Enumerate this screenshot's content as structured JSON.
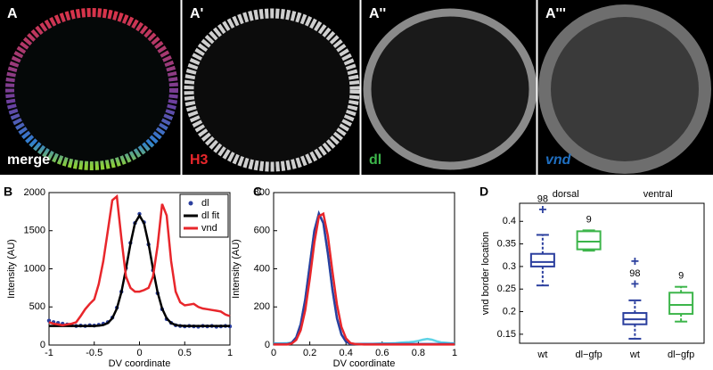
{
  "panels": [
    {
      "label": "A",
      "caption": "merge",
      "caption_color": "#ffffff"
    },
    {
      "label": "A'",
      "caption": "H3",
      "caption_color": "#e8262b"
    },
    {
      "label": "A''",
      "caption": "dl",
      "caption_color": "#3cb54a"
    },
    {
      "label": "A'''",
      "caption": "vnd",
      "caption_color": "#1f6fc1"
    }
  ],
  "chart_data": [
    {
      "type": "line",
      "panel": "B",
      "xlabel": "DV coordinate",
      "ylabel": "Intensity (AU)",
      "xlim": [
        -1,
        1
      ],
      "xticks": [
        -1,
        -0.5,
        0,
        0.5,
        1
      ],
      "ylim": [
        0,
        2000
      ],
      "yticks": [
        0,
        500,
        1000,
        1500,
        2000
      ],
      "legend": "upper right",
      "x": [
        -1,
        -0.95,
        -0.9,
        -0.85,
        -0.8,
        -0.75,
        -0.7,
        -0.65,
        -0.6,
        -0.55,
        -0.5,
        -0.45,
        -0.4,
        -0.35,
        -0.3,
        -0.25,
        -0.2,
        -0.15,
        -0.1,
        -0.05,
        0,
        0.05,
        0.1,
        0.15,
        0.2,
        0.25,
        0.3,
        0.35,
        0.4,
        0.45,
        0.5,
        0.55,
        0.6,
        0.65,
        0.7,
        0.75,
        0.8,
        0.85,
        0.9,
        0.95,
        1
      ],
      "series": [
        {
          "name": "dl",
          "color": "#2b3f9e",
          "style": "points",
          "values": [
            320,
            300,
            290,
            280,
            270,
            260,
            250,
            255,
            250,
            260,
            255,
            265,
            280,
            300,
            360,
            490,
            700,
            1010,
            1340,
            1600,
            1720,
            1610,
            1320,
            980,
            680,
            470,
            340,
            290,
            260,
            250,
            245,
            250,
            245,
            240,
            250,
            245,
            250,
            240,
            245,
            250,
            245
          ]
        },
        {
          "name": "dl fit",
          "color": "#000000",
          "style": "line",
          "values": [
            250,
            250,
            250,
            250,
            250,
            250,
            250,
            250,
            250,
            250,
            250,
            254,
            263,
            289,
            351,
            478,
            694,
            995,
            1329,
            1597,
            1700,
            1597,
            1329,
            995,
            694,
            478,
            351,
            289,
            263,
            254,
            250,
            250,
            250,
            250,
            250,
            250,
            250,
            250,
            250,
            250,
            250
          ]
        },
        {
          "name": "vnd",
          "color": "#e8262b",
          "style": "line",
          "values": [
            300,
            280,
            270,
            260,
            270,
            280,
            300,
            380,
            470,
            540,
            600,
            800,
            1100,
            1500,
            1900,
            1950,
            1400,
            900,
            750,
            700,
            700,
            720,
            750,
            900,
            1300,
            1850,
            1700,
            1100,
            700,
            560,
            520,
            530,
            540,
            500,
            480,
            470,
            460,
            450,
            440,
            400,
            380
          ]
        }
      ]
    },
    {
      "type": "line",
      "panel": "C",
      "xlabel": "DV coordinate",
      "ylabel": "Intensity (AU)",
      "xlim": [
        0,
        1
      ],
      "xticks": [
        0,
        0.2,
        0.4,
        0.6,
        0.8,
        1
      ],
      "ylim": [
        0,
        800
      ],
      "yticks": [
        0,
        200,
        400,
        600,
        800
      ],
      "x": [
        0,
        0.025,
        0.05,
        0.075,
        0.1,
        0.125,
        0.15,
        0.175,
        0.2,
        0.225,
        0.25,
        0.275,
        0.3,
        0.325,
        0.35,
        0.375,
        0.4,
        0.425,
        0.45,
        0.475,
        0.5,
        0.525,
        0.55,
        0.575,
        0.6,
        0.625,
        0.65,
        0.675,
        0.7,
        0.725,
        0.75,
        0.775,
        0.8,
        0.825,
        0.85,
        0.875,
        0.9,
        0.925,
        0.95,
        0.975,
        1
      ],
      "series": [
        {
          "color": "#5fd3e6",
          "style": "line",
          "values": [
            10,
            8,
            9,
            10,
            12,
            40,
            110,
            240,
            420,
            600,
            690,
            640,
            480,
            290,
            140,
            55,
            18,
            8,
            6,
            5,
            6,
            5,
            6,
            7,
            8,
            8,
            9,
            10,
            12,
            14,
            15,
            18,
            22,
            28,
            32,
            28,
            20,
            14,
            12,
            10,
            9
          ]
        },
        {
          "color": "#2b3f9e",
          "style": "line",
          "values": [
            5,
            5,
            5,
            5,
            12,
            40,
            110,
            240,
            420,
            600,
            690,
            640,
            480,
            290,
            140,
            55,
            18,
            6,
            5,
            5,
            5,
            5,
            5,
            5,
            5,
            5,
            5,
            5,
            5,
            5,
            5,
            5,
            5,
            5,
            5,
            5,
            5,
            5,
            5,
            5,
            5
          ]
        },
        {
          "color": "#e8262b",
          "style": "line",
          "values": [
            3,
            3,
            3,
            3,
            8,
            27,
            78,
            183,
            348,
            537,
            675,
            689,
            572,
            386,
            212,
            95,
            35,
            10,
            5,
            4,
            3,
            3,
            3,
            3,
            3,
            3,
            3,
            3,
            3,
            3,
            3,
            3,
            3,
            3,
            3,
            3,
            3,
            3,
            3,
            3,
            3
          ]
        }
      ]
    },
    {
      "type": "box",
      "panel": "D",
      "ylabel": "vnd border location",
      "ylim": [
        0.13,
        0.44
      ],
      "yticks": [
        0.15,
        0.2,
        0.25,
        0.3,
        0.35,
        0.4
      ],
      "groups": [
        "dorsal",
        "ventral"
      ],
      "boxes": [
        {
          "category": "wt",
          "color": "#2b3f9e",
          "whisker_low": 0.258,
          "q1": 0.3,
          "median": 0.31,
          "q3": 0.328,
          "whisker_high": 0.37,
          "outliers": [
            0.425
          ],
          "n": 98
        },
        {
          "category": "dl−gfp",
          "color": "#3cb54a",
          "whisker_low": 0.335,
          "q1": 0.338,
          "median": 0.355,
          "q3": 0.378,
          "whisker_high": 0.38,
          "outliers": [],
          "n": 9
        },
        {
          "category": "wt",
          "color": "#2b3f9e",
          "whisker_low": 0.14,
          "q1": 0.172,
          "median": 0.183,
          "q3": 0.197,
          "whisker_high": 0.225,
          "outliers": [
            0.26,
            0.31
          ],
          "n": 98
        },
        {
          "category": "dl−gfp",
          "color": "#3cb54a",
          "whisker_low": 0.178,
          "q1": 0.195,
          "median": 0.215,
          "q3": 0.242,
          "whisker_high": 0.255,
          "outliers": [],
          "n": 9
        }
      ]
    }
  ]
}
